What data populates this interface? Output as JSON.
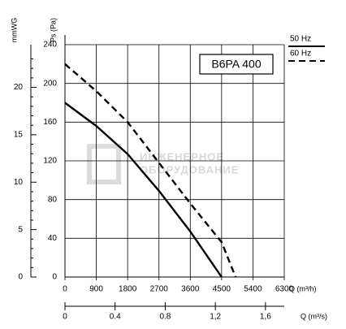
{
  "chart_data": {
    "type": "line",
    "title": "B6PA 400",
    "watermark": [
      "ИНЖЕНЕРНОЕ",
      "ОБОРУДОВАНИЕ"
    ],
    "x_label": "Q (m³/h)",
    "y_label": "Ps (Pa)",
    "y2_label": "mmWG",
    "x2_label": "Q (m³/s)",
    "xlim": [
      0,
      6300
    ],
    "xticks": [
      0,
      900,
      1800,
      2700,
      3600,
      4500,
      5400,
      6300
    ],
    "ylim": [
      0,
      240
    ],
    "yticks": [
      0,
      40,
      80,
      120,
      160,
      200,
      240
    ],
    "y2lim": [
      0,
      24.5
    ],
    "y2ticks": [
      0,
      5,
      10,
      15,
      20
    ],
    "x2lim": [
      0,
      1.75
    ],
    "x2ticks": [
      0,
      0.4,
      0.8,
      {
        "value": 1.2,
        "label": "1,2"
      },
      {
        "value": 1.6,
        "label": "1,6"
      }
    ],
    "grid": true,
    "series": [
      {
        "name": "50 Hz",
        "color": "#000000",
        "dash": false,
        "x": [
          0,
          900,
          1800,
          2700,
          3600,
          4500
        ],
        "values": [
          180,
          156,
          127,
          89,
          47,
          0
        ]
      },
      {
        "name": "60 Hz",
        "color": "#000000",
        "dash": true,
        "x": [
          0,
          900,
          1800,
          2700,
          3600,
          4500,
          4900
        ],
        "values": [
          220,
          192,
          160,
          118,
          76,
          36,
          0
        ]
      }
    ]
  }
}
